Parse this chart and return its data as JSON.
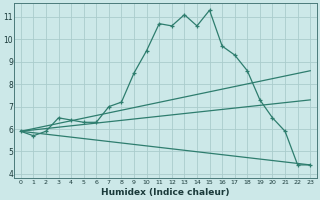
{
  "xlabel": "Humidex (Indice chaleur)",
  "bg_color": "#cce8e8",
  "grid_color": "#aacccc",
  "line_color": "#2e7d6e",
  "xlim": [
    -0.5,
    23.5
  ],
  "ylim": [
    3.8,
    11.6
  ],
  "xticks": [
    0,
    1,
    2,
    3,
    4,
    5,
    6,
    7,
    8,
    9,
    10,
    11,
    12,
    13,
    14,
    15,
    16,
    17,
    18,
    19,
    20,
    21,
    22,
    23
  ],
  "yticks": [
    4,
    5,
    6,
    7,
    8,
    9,
    10,
    11
  ],
  "line1_x": [
    0,
    1,
    2,
    3,
    4,
    5,
    6,
    7,
    8,
    9,
    10,
    11,
    12,
    13,
    14,
    15,
    16,
    17,
    18,
    19,
    20,
    21,
    22,
    23
  ],
  "line1_y": [
    5.9,
    5.7,
    5.9,
    6.5,
    6.4,
    6.3,
    6.3,
    7.0,
    7.2,
    8.5,
    9.5,
    10.7,
    10.6,
    11.1,
    10.6,
    11.3,
    9.7,
    9.3,
    8.6,
    7.3,
    6.5,
    5.9,
    4.4,
    4.4
  ],
  "line2_x": [
    0,
    23
  ],
  "line2_y": [
    5.9,
    8.6
  ],
  "line3_x": [
    0,
    23
  ],
  "line3_y": [
    5.9,
    7.3
  ],
  "line4_x": [
    0,
    23
  ],
  "line4_y": [
    5.9,
    4.4
  ]
}
